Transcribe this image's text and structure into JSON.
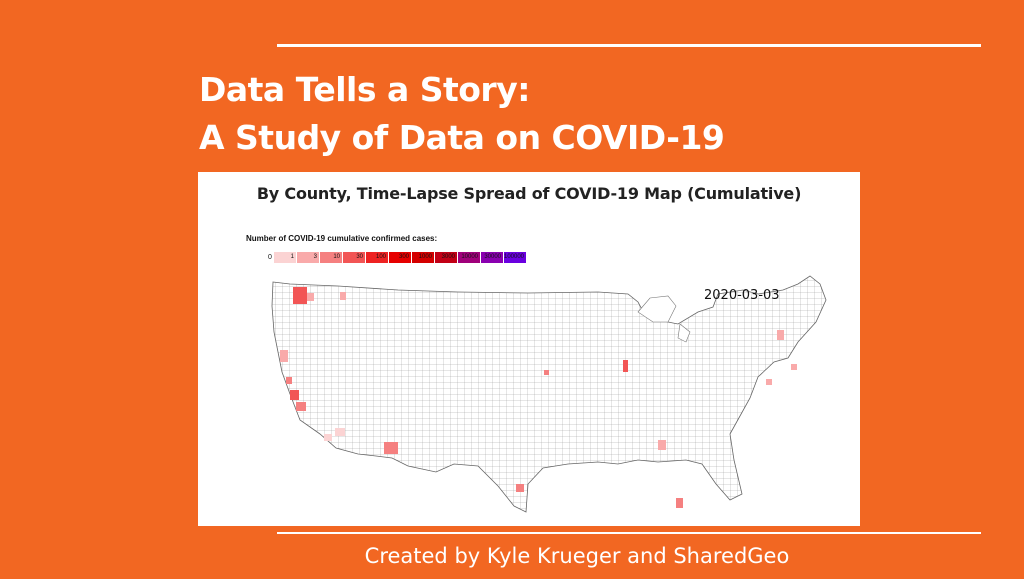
{
  "slide": {
    "title_line1": "Data Tells a Story:",
    "title_line2": "A Study of Data on COVID-19",
    "footer": "Created by Kyle Krueger and SharedGeo",
    "background_color": "#f26722"
  },
  "map": {
    "title": "By County, Time-Lapse Spread of COVID-19 Map (Cumulative)",
    "legend_caption": "Number of COVID-19 cumulative confirmed cases:",
    "legend_zero": "0",
    "legend": [
      {
        "label": "1",
        "color": "#fbd3d3"
      },
      {
        "label": "3",
        "color": "#f9aaaa"
      },
      {
        "label": "10",
        "color": "#f58080"
      },
      {
        "label": "30",
        "color": "#f25555"
      },
      {
        "label": "100",
        "color": "#ee2222"
      },
      {
        "label": "300",
        "color": "#e60000"
      },
      {
        "label": "1000",
        "color": "#d40000"
      },
      {
        "label": "3000",
        "color": "#c20016"
      },
      {
        "label": "10000",
        "color": "#a0007a"
      },
      {
        "label": "30000",
        "color": "#8a00b0"
      },
      {
        "label": "100000",
        "color": "#6a00e0"
      }
    ],
    "date": "2020-03-03"
  }
}
